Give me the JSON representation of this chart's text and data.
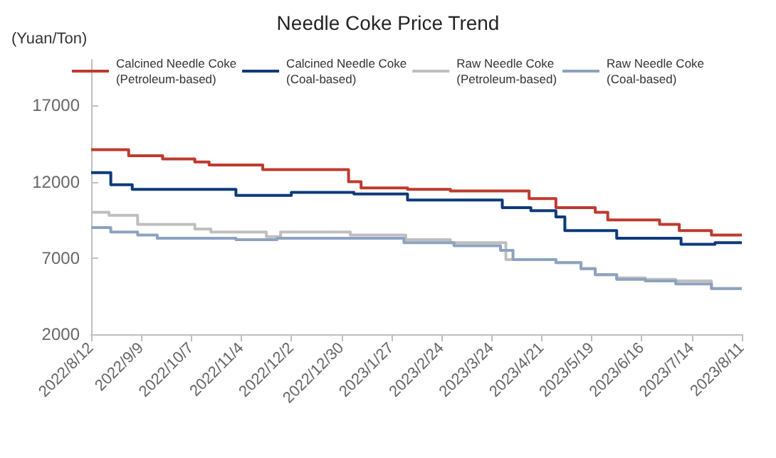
{
  "chart_data": {
    "type": "step",
    "title": "Needle Coke Price Trend",
    "ylabel": "(Yuan/Ton)",
    "xlim": [
      "2022-08-12",
      "2023-08-11"
    ],
    "ylim": [
      2000,
      20000
    ],
    "yticks": [
      2000,
      7000,
      12000,
      17000
    ],
    "xticks": [
      {
        "value": "2022-08-12",
        "label": "2022/8/12"
      },
      {
        "value": "2022-09-09",
        "label": "2022/9/9"
      },
      {
        "value": "2022-10-07",
        "label": "2022/10/7"
      },
      {
        "value": "2022-11-04",
        "label": "2022/11/4"
      },
      {
        "value": "2022-12-02",
        "label": "2022/12/2"
      },
      {
        "value": "2022-12-30",
        "label": "2022/12/30"
      },
      {
        "value": "2023-01-27",
        "label": "2023/1/27"
      },
      {
        "value": "2023-02-24",
        "label": "2023/2/24"
      },
      {
        "value": "2023-03-24",
        "label": "2023/3/24"
      },
      {
        "value": "2023-04-21",
        "label": "2023/4/21"
      },
      {
        "value": "2023-05-19",
        "label": "2023/5/19"
      },
      {
        "value": "2023-06-16",
        "label": "2023/6/16"
      },
      {
        "value": "2023-07-14",
        "label": "2023/7/14"
      },
      {
        "value": "2023-08-11",
        "label": "2023/8/11"
      }
    ],
    "grid": false,
    "legend": "top",
    "marker": "none",
    "line_style": "solid",
    "series": [
      {
        "name": "Calcined Needle Coke\n(Petroleum-based)",
        "color": "#be3a2e",
        "x": [
          "2022-08-12",
          "2022-09-02",
          "2022-09-21",
          "2022-10-09",
          "2022-10-17",
          "2022-11-16",
          "2023-01-03",
          "2023-01-10",
          "2023-02-05",
          "2023-03-01",
          "2023-04-14",
          "2023-04-29",
          "2023-05-21",
          "2023-05-28",
          "2023-06-26",
          "2023-07-07",
          "2023-07-25",
          "2023-08-11"
        ],
        "values": [
          14100,
          13700,
          13500,
          13300,
          13100,
          12800,
          12000,
          11600,
          11500,
          11400,
          10900,
          10300,
          10000,
          9500,
          9200,
          8800,
          8500,
          8500
        ]
      },
      {
        "name": "Calcined Needle Coke\n(Coal-based)",
        "color": "#0d3a7a",
        "x": [
          "2022-08-12",
          "2022-08-23",
          "2022-09-04",
          "2022-11-01",
          "2022-12-02",
          "2023-01-06",
          "2023-02-05",
          "2023-03-30",
          "2023-04-15",
          "2023-04-29",
          "2023-05-04",
          "2023-06-02",
          "2023-07-08",
          "2023-07-27",
          "2023-08-11"
        ],
        "values": [
          12600,
          11800,
          11500,
          11100,
          11300,
          11200,
          10800,
          10300,
          10100,
          9700,
          8800,
          8300,
          7900,
          8000,
          8000
        ]
      },
      {
        "name": "Raw Needle Coke\n(Petroleum-based)",
        "color": "#bfbfbf",
        "x": [
          "2022-08-12",
          "2022-08-22",
          "2022-09-07",
          "2022-10-09",
          "2022-10-18",
          "2022-11-18",
          "2022-11-26",
          "2023-01-04",
          "2023-02-04",
          "2023-03-01",
          "2023-04-01",
          "2023-04-29",
          "2023-05-13",
          "2023-05-21",
          "2023-06-02",
          "2023-06-18",
          "2023-07-05",
          "2023-07-25",
          "2023-08-11"
        ],
        "values": [
          10000,
          9800,
          9200,
          8900,
          8700,
          8400,
          8700,
          8500,
          8200,
          8000,
          6900,
          6700,
          6300,
          5900,
          5700,
          5600,
          5500,
          5000,
          5000
        ]
      },
      {
        "name": "Raw Needle Coke\n(Coal-based)",
        "color": "#8ea2c0",
        "x": [
          "2022-08-12",
          "2022-08-23",
          "2022-09-07",
          "2022-09-18",
          "2022-11-01",
          "2022-11-24",
          "2023-02-03",
          "2023-03-03",
          "2023-03-29",
          "2023-04-05",
          "2023-04-29",
          "2023-05-13",
          "2023-05-21",
          "2023-06-02",
          "2023-06-18",
          "2023-07-05",
          "2023-07-25",
          "2023-08-11"
        ],
        "values": [
          9000,
          8700,
          8500,
          8300,
          8200,
          8300,
          8000,
          7800,
          7500,
          6900,
          6700,
          6300,
          5900,
          5600,
          5500,
          5300,
          5000,
          5000
        ]
      }
    ]
  }
}
